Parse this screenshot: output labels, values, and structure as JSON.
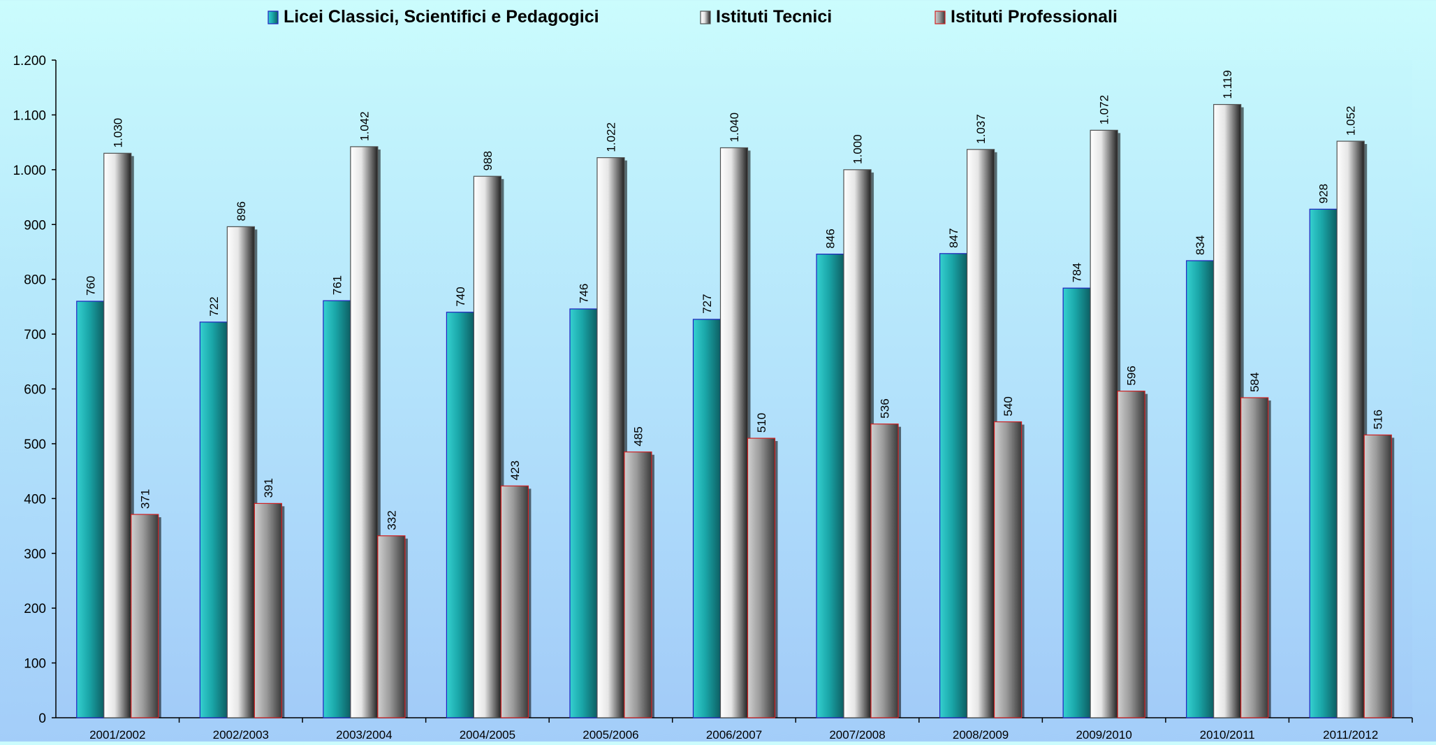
{
  "chart_data": {
    "type": "bar",
    "title": "",
    "xlabel": "",
    "ylabel": "",
    "ylim": [
      0,
      1200
    ],
    "yticks": [
      0,
      100,
      200,
      300,
      400,
      500,
      600,
      700,
      800,
      900,
      1000,
      1100,
      1200
    ],
    "ytick_labels": [
      "0",
      "100",
      "200",
      "300",
      "400",
      "500",
      "600",
      "700",
      "800",
      "900",
      "1.000",
      "1.100",
      "1.200"
    ],
    "grid": false,
    "legend_position": "top",
    "categories": [
      "2001/2002",
      "2002/2003",
      "2003/2004",
      "2004/2005",
      "2005/2006",
      "2006/2007",
      "2007/2008",
      "2008/2009",
      "2009/2010",
      "2010/2011",
      "2011/2012"
    ],
    "series": [
      {
        "name": "Licei Classici, Scientifici e Pedagogici",
        "values": [
          760,
          722,
          761,
          740,
          746,
          727,
          846,
          847,
          784,
          834,
          928
        ],
        "labels": [
          "760",
          "722",
          "761",
          "740",
          "746",
          "727",
          "846",
          "847",
          "784",
          "834",
          "928"
        ],
        "color": "#1fa8a8",
        "border": "#2020c0"
      },
      {
        "name": "Istituti Tecnici",
        "values": [
          1030,
          896,
          1042,
          988,
          1022,
          1040,
          1000,
          1037,
          1072,
          1119,
          1052
        ],
        "labels": [
          "1.030",
          "896",
          "1.042",
          "988",
          "1.022",
          "1.040",
          "1.000",
          "1.037",
          "1.072",
          "1.119",
          "1.052"
        ],
        "color": "#e8e8e8",
        "border": "#505050"
      },
      {
        "name": "Istituti Professionali",
        "values": [
          371,
          391,
          332,
          423,
          485,
          510,
          536,
          540,
          596,
          584,
          516
        ],
        "labels": [
          "371",
          "391",
          "332",
          "423",
          "485",
          "510",
          "536",
          "540",
          "596",
          "584",
          "516"
        ],
        "color": "#9a9a9a",
        "border": "#d02020"
      }
    ]
  }
}
